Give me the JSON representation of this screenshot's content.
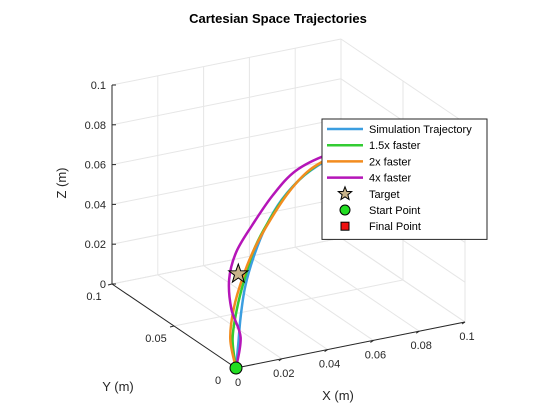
{
  "chart_data": {
    "type": "line",
    "title": "Cartesian Space Trajectories",
    "xlabel": "X (m)",
    "ylabel": "Y (m)",
    "zlabel": "Z (m)",
    "xlim": [
      0,
      0.1
    ],
    "ylim": [
      0,
      0.1
    ],
    "zlim": [
      0,
      0.1
    ],
    "x_ticks": [
      "0",
      "0.02",
      "0.04",
      "0.06",
      "0.08",
      "0.1"
    ],
    "y_ticks": [
      "0",
      "0.05",
      "0.1"
    ],
    "z_ticks": [
      "0",
      "0.02",
      "0.04",
      "0.06",
      "0.08",
      "0.1"
    ],
    "grid": true,
    "legend_position": "right",
    "series": [
      {
        "name": "Simulation Trajectory",
        "color": "#3b9ee0",
        "points": [
          [
            0,
            0,
            0
          ],
          [
            0.001,
            0,
            0.012
          ],
          [
            0.002,
            0,
            0.025
          ],
          [
            0.004,
            0,
            0.04
          ],
          [
            0.008,
            0,
            0.055
          ],
          [
            0.013,
            0,
            0.068
          ],
          [
            0.02,
            0,
            0.08
          ],
          [
            0.03,
            0,
            0.09
          ],
          [
            0.042,
            0,
            0.096
          ],
          [
            0.06,
            0,
            0.1
          ]
        ]
      },
      {
        "name": "1.5x faster",
        "color": "#33cc33",
        "points": [
          [
            0,
            0,
            0
          ],
          [
            -0.0015,
            0,
            0.015
          ],
          [
            0.0005,
            0,
            0.03
          ],
          [
            0.004,
            0,
            0.045
          ],
          [
            0.008,
            0,
            0.058
          ],
          [
            0.014,
            0,
            0.07
          ],
          [
            0.022,
            0,
            0.082
          ],
          [
            0.031,
            0,
            0.091
          ],
          [
            0.043,
            0,
            0.097
          ],
          [
            0.06,
            0,
            0.1
          ]
        ]
      },
      {
        "name": "2x faster",
        "color": "#f28c1f",
        "points": [
          [
            0,
            0,
            0
          ],
          [
            -0.0025,
            0,
            0.015
          ],
          [
            -0.001,
            0,
            0.03
          ],
          [
            0.003,
            0,
            0.045
          ],
          [
            0.008,
            0,
            0.058
          ],
          [
            0.015,
            0,
            0.071
          ],
          [
            0.023,
            0,
            0.083
          ],
          [
            0.032,
            0,
            0.092
          ],
          [
            0.044,
            0,
            0.097
          ],
          [
            0.06,
            0,
            0.1
          ]
        ]
      },
      {
        "name": "4x faster",
        "color": "#b515b8",
        "points": [
          [
            0,
            0,
            0
          ],
          [
            0.002,
            0,
            0.015
          ],
          [
            -0.002,
            0,
            0.03
          ],
          [
            -0.003,
            0,
            0.045
          ],
          [
            0.0,
            0,
            0.058
          ],
          [
            0.007,
            0,
            0.07
          ],
          [
            0.016,
            0,
            0.083
          ],
          [
            0.026,
            0,
            0.093
          ],
          [
            0.04,
            0,
            0.098
          ],
          [
            0.06,
            0,
            0.1
          ]
        ]
      }
    ],
    "markers": [
      {
        "name": "Target",
        "symbol": "star",
        "color": "#c8b38a",
        "point": [
          0.001,
          0,
          0.047
        ]
      },
      {
        "name": "Start Point",
        "symbol": "circle",
        "color": "#22dd22",
        "point": [
          0,
          0,
          0
        ]
      },
      {
        "name": "Final Point",
        "symbol": "square",
        "color": "#ee1111",
        "point": [
          0.06,
          0,
          0.1
        ]
      }
    ]
  }
}
